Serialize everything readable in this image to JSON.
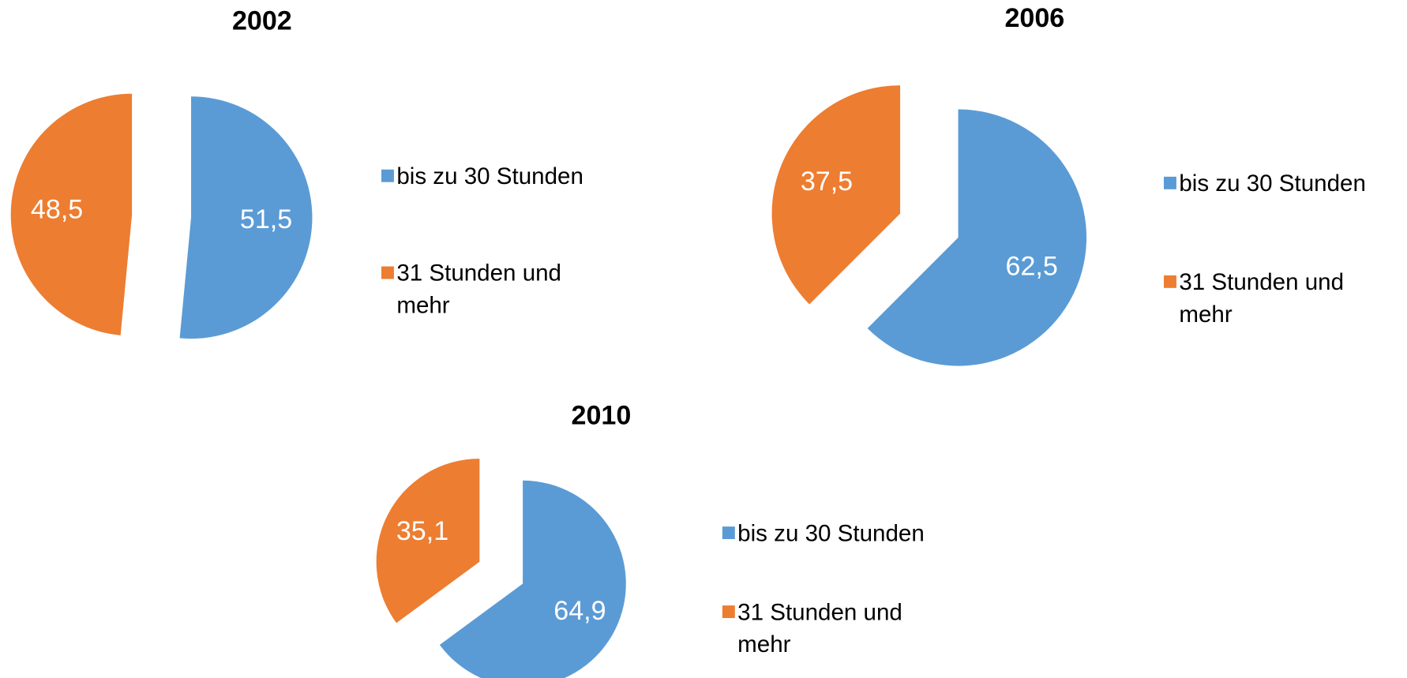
{
  "chart_data": [
    {
      "type": "pie",
      "title": "2002",
      "categories": [
        "bis zu 30 Stunden",
        "31 Stunden und mehr"
      ],
      "values": [
        51.5,
        48.5
      ],
      "value_labels": [
        "51,5",
        "48,5"
      ],
      "colors": [
        "#5b9bd5",
        "#ed7d31"
      ]
    },
    {
      "type": "pie",
      "title": "2006",
      "categories": [
        "bis zu 30 Stunden",
        "31 Stunden und mehr"
      ],
      "values": [
        62.5,
        37.5
      ],
      "value_labels": [
        "62,5",
        "37,5"
      ],
      "colors": [
        "#5b9bd5",
        "#ed7d31"
      ]
    },
    {
      "type": "pie",
      "title": "2010",
      "categories": [
        "bis zu 30 Stunden",
        "31 Stunden und mehr"
      ],
      "values": [
        64.9,
        35.1
      ],
      "value_labels": [
        "64,9",
        "35,1"
      ],
      "colors": [
        "#5b9bd5",
        "#ed7d31"
      ]
    }
  ]
}
